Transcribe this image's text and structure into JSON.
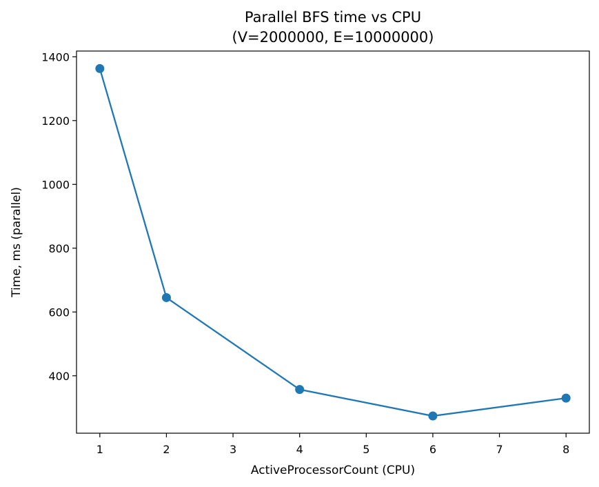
{
  "chart_data": {
    "type": "line",
    "title": "Parallel BFS time vs CPU",
    "subtitle": "(V=2000000, E=10000000)",
    "xlabel": "ActiveProcessorCount (CPU)",
    "ylabel": "Time, ms (parallel)",
    "x": [
      1,
      2,
      4,
      6,
      8
    ],
    "series": [
      {
        "values": [
          1363,
          645,
          357,
          274,
          330
        ],
        "color": "#1f77b4",
        "marker": "circle"
      }
    ],
    "xlim": [
      0.65,
      8.35
    ],
    "ylim": [
      220,
      1418
    ],
    "xticks": [
      "1",
      "2",
      "3",
      "4",
      "5",
      "6",
      "7",
      "8"
    ],
    "yticks": [
      "400",
      "600",
      "800",
      "1000",
      "1200",
      "1400"
    ],
    "grid": false,
    "legend": "none"
  }
}
